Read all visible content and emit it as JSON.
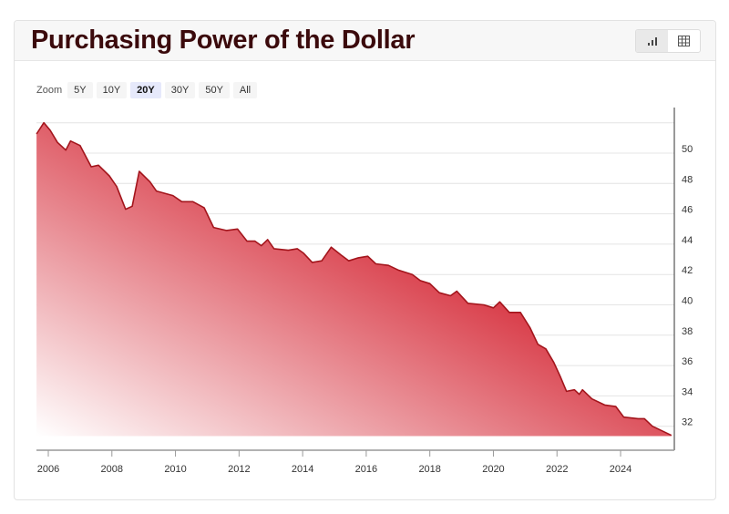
{
  "header": {
    "title": "Purchasing Power of the Dollar"
  },
  "view_toggle": [
    {
      "icon": "bar-chart-icon",
      "active": true
    },
    {
      "icon": "table-icon",
      "active": false
    }
  ],
  "zoom": {
    "label": "Zoom",
    "options": [
      "5Y",
      "10Y",
      "20Y",
      "30Y",
      "50Y",
      "All"
    ],
    "selected": "20Y"
  },
  "colors": {
    "line": "#a3151c",
    "fill_top": "#d0101f",
    "fill_bottom": "#ffffff",
    "title": "#3b0a0c"
  },
  "chart_data": {
    "type": "area",
    "title": "Purchasing Power of the Dollar",
    "xlabel": "",
    "ylabel": "",
    "xlim": [
      2005.63,
      2025.7
    ],
    "ylim": [
      31.35,
      52.2
    ],
    "y_axis_side": "right",
    "grid": true,
    "x_ticks": [
      "2006",
      "2008",
      "2010",
      "2012",
      "2014",
      "2016",
      "2018",
      "2020",
      "2022",
      "2024"
    ],
    "y_ticks": [
      "32",
      "34",
      "36",
      "38",
      "40",
      "42",
      "44",
      "46",
      "48",
      "50"
    ],
    "points": [
      [
        2005.63,
        51.26
      ],
      [
        2005.86,
        52.0
      ],
      [
        2006.06,
        51.5
      ],
      [
        2006.29,
        50.7
      ],
      [
        2006.55,
        50.2
      ],
      [
        2006.7,
        50.8
      ],
      [
        2007.0,
        50.5
      ],
      [
        2007.35,
        49.1
      ],
      [
        2007.58,
        49.2
      ],
      [
        2007.92,
        48.5
      ],
      [
        2008.15,
        47.8
      ],
      [
        2008.43,
        46.3
      ],
      [
        2008.64,
        46.5
      ],
      [
        2008.86,
        48.8
      ],
      [
        2009.2,
        48.1
      ],
      [
        2009.4,
        47.5
      ],
      [
        2009.92,
        47.2
      ],
      [
        2010.2,
        46.8
      ],
      [
        2010.55,
        46.8
      ],
      [
        2010.9,
        46.4
      ],
      [
        2011.2,
        45.1
      ],
      [
        2011.6,
        44.9
      ],
      [
        2011.95,
        45.0
      ],
      [
        2012.25,
        44.2
      ],
      [
        2012.5,
        44.2
      ],
      [
        2012.7,
        43.9
      ],
      [
        2012.9,
        44.3
      ],
      [
        2013.1,
        43.7
      ],
      [
        2013.55,
        43.6
      ],
      [
        2013.83,
        43.7
      ],
      [
        2014.03,
        43.4
      ],
      [
        2014.3,
        42.8
      ],
      [
        2014.6,
        42.9
      ],
      [
        2014.9,
        43.8
      ],
      [
        2015.2,
        43.3
      ],
      [
        2015.45,
        42.9
      ],
      [
        2015.75,
        43.1
      ],
      [
        2016.05,
        43.2
      ],
      [
        2016.3,
        42.7
      ],
      [
        2016.7,
        42.6
      ],
      [
        2017.0,
        42.3
      ],
      [
        2017.45,
        42.0
      ],
      [
        2017.7,
        41.6
      ],
      [
        2018.0,
        41.4
      ],
      [
        2018.3,
        40.8
      ],
      [
        2018.65,
        40.6
      ],
      [
        2018.85,
        40.9
      ],
      [
        2019.2,
        40.1
      ],
      [
        2019.7,
        40.0
      ],
      [
        2020.0,
        39.8
      ],
      [
        2020.2,
        40.2
      ],
      [
        2020.5,
        39.5
      ],
      [
        2020.85,
        39.5
      ],
      [
        2021.15,
        38.5
      ],
      [
        2021.4,
        37.4
      ],
      [
        2021.65,
        37.1
      ],
      [
        2021.9,
        36.2
      ],
      [
        2022.1,
        35.3
      ],
      [
        2022.3,
        34.3
      ],
      [
        2022.55,
        34.4
      ],
      [
        2022.7,
        34.1
      ],
      [
        2022.8,
        34.4
      ],
      [
        2023.1,
        33.8
      ],
      [
        2023.5,
        33.4
      ],
      [
        2023.85,
        33.3
      ],
      [
        2024.1,
        32.6
      ],
      [
        2024.55,
        32.5
      ],
      [
        2024.75,
        32.5
      ],
      [
        2025.0,
        32.0
      ],
      [
        2025.3,
        31.7
      ],
      [
        2025.6,
        31.4
      ]
    ]
  }
}
